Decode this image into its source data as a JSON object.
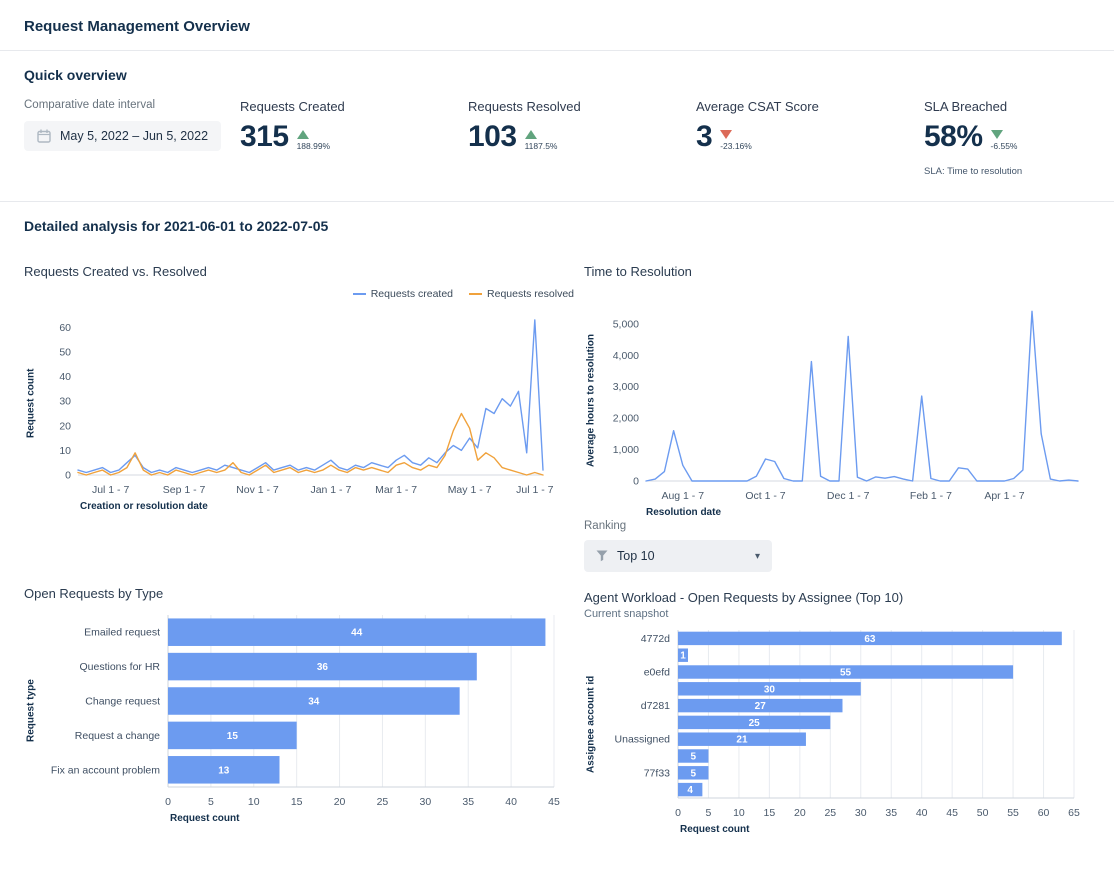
{
  "page": {
    "title": "Request Management Overview"
  },
  "colors": {
    "blue": "#6C9BF0",
    "orange": "#F0A23C",
    "green": "#61A47E",
    "red": "#DC6A58"
  },
  "quick": {
    "heading": "Quick overview",
    "date_interval": {
      "label": "Comparative date interval",
      "value": "May 5, 2022 – Jun 5, 2022"
    },
    "kpis": [
      {
        "label": "Requests Created",
        "value": "315",
        "delta": "188.99%",
        "trend": "up"
      },
      {
        "label": "Requests Resolved",
        "value": "103",
        "delta": "1187.5%",
        "trend": "up"
      },
      {
        "label": "Average CSAT Score",
        "value": "3",
        "delta": "-23.16%",
        "trend": "down"
      },
      {
        "label": "SLA Breached",
        "value": "58%",
        "delta": "-6.55%",
        "trend": "down",
        "footnote": "SLA: Time to resolution"
      }
    ]
  },
  "detailed": {
    "heading": "Detailed analysis for 2021-06-01 to 2022-07-05"
  },
  "ranking": {
    "label": "Ranking",
    "selected": "Top 10"
  },
  "chart_data": [
    {
      "type": "line",
      "title": "Requests Created vs. Resolved",
      "xlabel": "Creation or resolution date",
      "ylabel": "Request count",
      "ymax": 65,
      "yticks": [
        {
          "v": 0,
          "label": "0"
        },
        {
          "v": 10,
          "label": "10"
        },
        {
          "v": 20,
          "label": "20"
        },
        {
          "v": 30,
          "label": "30"
        },
        {
          "v": 40,
          "label": "40"
        },
        {
          "v": 50,
          "label": "50"
        },
        {
          "v": 60,
          "label": "60"
        }
      ],
      "xticks": [
        {
          "i": 4,
          "label": "Jul 1 - 7"
        },
        {
          "i": 13,
          "label": "Sep 1 - 7"
        },
        {
          "i": 22,
          "label": "Nov 1 - 7"
        },
        {
          "i": 31,
          "label": "Jan 1 - 7"
        },
        {
          "i": 39,
          "label": "Mar 1 - 7"
        },
        {
          "i": 48,
          "label": "May 1 - 7"
        },
        {
          "i": 56,
          "label": "Jul 1 - 7"
        }
      ],
      "legend_position": "top-right",
      "grid": false,
      "series": [
        {
          "name": "Requests created",
          "color": "#6C9BF0",
          "values": [
            2,
            1,
            2,
            3,
            1,
            2,
            5,
            8,
            3,
            1,
            2,
            1,
            3,
            2,
            1,
            2,
            3,
            2,
            4,
            3,
            2,
            1,
            3,
            5,
            2,
            3,
            4,
            2,
            3,
            2,
            4,
            6,
            3,
            2,
            4,
            3,
            5,
            4,
            3,
            6,
            8,
            5,
            4,
            7,
            5,
            9,
            12,
            10,
            15,
            11,
            27,
            25,
            31,
            28,
            34,
            9,
            63,
            2
          ]
        },
        {
          "name": "Requests resolved",
          "color": "#F0A23C",
          "values": [
            1,
            0,
            1,
            2,
            0,
            1,
            3,
            9,
            2,
            0,
            1,
            0,
            2,
            1,
            0,
            1,
            2,
            1,
            2,
            5,
            1,
            0,
            2,
            4,
            1,
            2,
            3,
            1,
            2,
            1,
            2,
            4,
            2,
            1,
            3,
            2,
            3,
            2,
            1,
            4,
            5,
            3,
            2,
            4,
            3,
            8,
            18,
            25,
            19,
            6,
            9,
            7,
            3,
            2,
            1,
            0,
            1,
            0
          ]
        }
      ]
    },
    {
      "type": "line",
      "title": "Time to Resolution",
      "xlabel": "Resolution date",
      "ylabel": "Average hours to resolution",
      "ymax": 5600,
      "yticks": [
        {
          "v": 0,
          "label": "0"
        },
        {
          "v": 1000,
          "label": "1,000"
        },
        {
          "v": 2000,
          "label": "2,000"
        },
        {
          "v": 3000,
          "label": "3,000"
        },
        {
          "v": 4000,
          "label": "4,000"
        },
        {
          "v": 5000,
          "label": "5,000"
        }
      ],
      "xticks": [
        {
          "i": 4,
          "label": "Aug 1 - 7"
        },
        {
          "i": 13,
          "label": "Oct 1 - 7"
        },
        {
          "i": 22,
          "label": "Dec 1 - 7"
        },
        {
          "i": 31,
          "label": "Feb 1 - 7"
        },
        {
          "i": 39,
          "label": "Apr 1 - 7"
        }
      ],
      "grid": false,
      "series": [
        {
          "name": "Average hours to resolution",
          "color": "#6C9BF0",
          "values": [
            0,
            60,
            300,
            1600,
            500,
            0,
            0,
            0,
            0,
            0,
            0,
            0,
            150,
            700,
            620,
            80,
            0,
            0,
            3800,
            150,
            0,
            0,
            4600,
            120,
            0,
            130,
            90,
            140,
            60,
            0,
            2700,
            80,
            0,
            0,
            420,
            380,
            0,
            0,
            0,
            0,
            80,
            350,
            5400,
            1500,
            60,
            0,
            30,
            0
          ]
        }
      ]
    },
    {
      "type": "hbar",
      "title": "Open Requests by Type",
      "xlabel": "Request count",
      "ylabel": "Request type",
      "xmax": 45,
      "xticks": [
        0,
        5,
        10,
        15,
        20,
        25,
        30,
        35,
        40,
        45
      ],
      "grid": true,
      "color": "#6C9BF0",
      "categories": [
        "Emailed request",
        "Questions for HR",
        "Change request",
        "Request a change",
        "Fix an account problem"
      ],
      "values": [
        44,
        36,
        34,
        15,
        13
      ]
    },
    {
      "type": "hbar",
      "title": "Agent Workload - Open Requests by Assignee (Top 10)",
      "subtitle": "Current snapshot",
      "xlabel": "Request count",
      "ylabel": "Assignee account id",
      "xmax": 65,
      "xticks": [
        0,
        5,
        10,
        15,
        20,
        25,
        30,
        35,
        40,
        45,
        50,
        55,
        60,
        65
      ],
      "grid": true,
      "color": "#6C9BF0",
      "categories": [
        "4772d",
        "",
        "e0efd",
        "",
        "d7281",
        "",
        "Unassigned",
        "",
        "77f33",
        ""
      ],
      "values": [
        63,
        1,
        55,
        30,
        27,
        25,
        21,
        5,
        5,
        4
      ]
    }
  ]
}
